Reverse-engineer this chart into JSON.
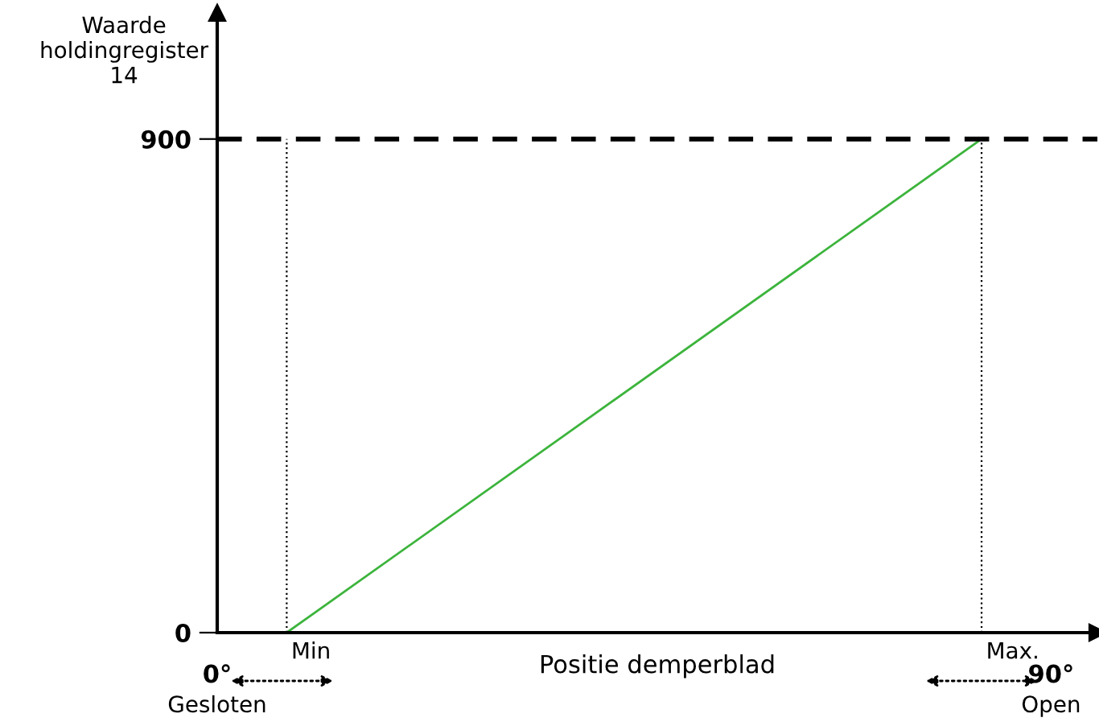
{
  "chart_data": {
    "type": "line",
    "xlabel": "Positie demperblad",
    "ylabel": "Waarde\nholdingregister\n14",
    "series": [
      {
        "color": "#3cb43c",
        "x": [
          7.5,
          82.5
        ],
        "values": [
          0,
          900
        ]
      }
    ],
    "xlim": [
      0,
      95
    ],
    "ylim": [
      0,
      1130
    ],
    "xticks": [
      {
        "value": 0,
        "label": "0°"
      },
      {
        "value": 90,
        "label": "90°"
      }
    ],
    "yticks": [
      0,
      900
    ],
    "ref_lines": [
      {
        "axis": "y",
        "value": 900,
        "label": null,
        "color": "#000000",
        "line_style": "dashed"
      },
      {
        "axis": "x",
        "value": 7.5,
        "label": "Min",
        "color": "#000000",
        "line_style": "dotted"
      },
      {
        "axis": "x",
        "value": 82.5,
        "label": "Max.",
        "color": "#000000",
        "line_style": "dotted"
      }
    ],
    "annotations": [
      "Gesloten",
      "Open"
    ],
    "grid": false,
    "legend": false,
    "marker": "none",
    "line_style": "solid"
  }
}
